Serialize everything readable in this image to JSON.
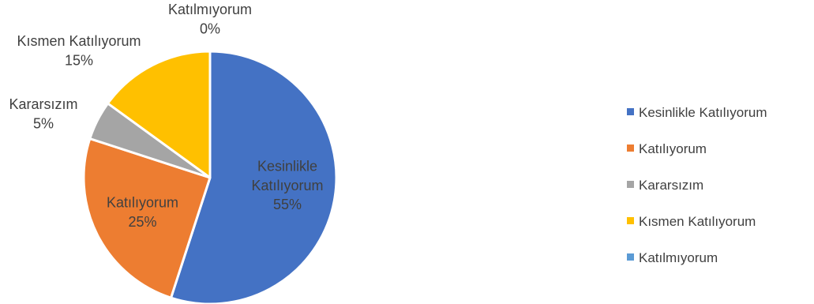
{
  "chart_data": {
    "type": "pie",
    "title": "",
    "categories": [
      "Kesinlikle Katılıyorum",
      "Katılıyorum",
      "Kararsızım",
      "Kısmen Katılıyorum",
      "Katılmıyorum"
    ],
    "values": [
      55,
      25,
      5,
      15,
      0
    ],
    "value_labels": [
      "55%",
      "25%",
      "5%",
      "15%",
      "0%"
    ],
    "colors": [
      "#4472C4",
      "#ED7D31",
      "#A5A5A5",
      "#FFC000",
      "#5B9BD5"
    ],
    "legend_position": "right"
  }
}
